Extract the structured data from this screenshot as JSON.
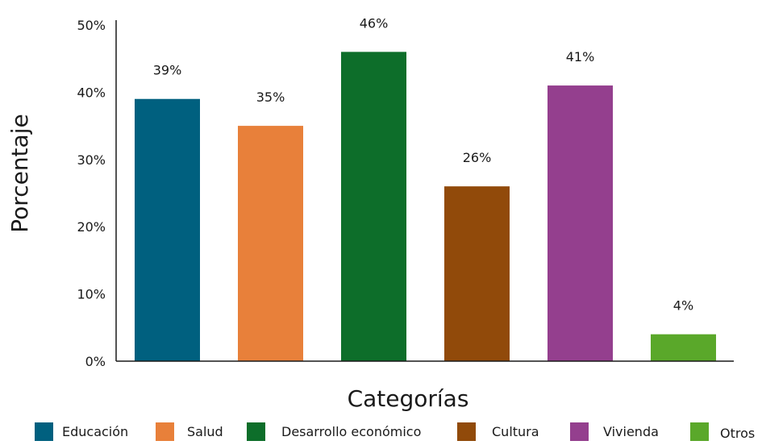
{
  "chart_data": {
    "type": "bar",
    "xlabel": "Categorías",
    "ylabel": "Porcentaje",
    "categories": [
      "Educación",
      "Salud",
      "Desarrollo económico",
      "Cultura",
      "Vivienda",
      "Otros"
    ],
    "values": [
      39,
      35,
      46,
      26,
      41,
      4
    ],
    "value_labels": [
      "39%",
      "35%",
      "46%",
      "26%",
      "41%",
      "4%"
    ],
    "colors": [
      "#00607f",
      "#e8803a",
      "#0d6e2a",
      "#914a0a",
      "#943f8e",
      "#5aa82a"
    ],
    "ylim": [
      0,
      50
    ],
    "yticks": [
      0,
      10,
      20,
      30,
      40,
      50
    ],
    "ytick_labels": [
      "0%",
      "10%",
      "20%",
      "30%",
      "40%",
      "50%"
    ],
    "grid": false,
    "legend_position": "bottom"
  }
}
